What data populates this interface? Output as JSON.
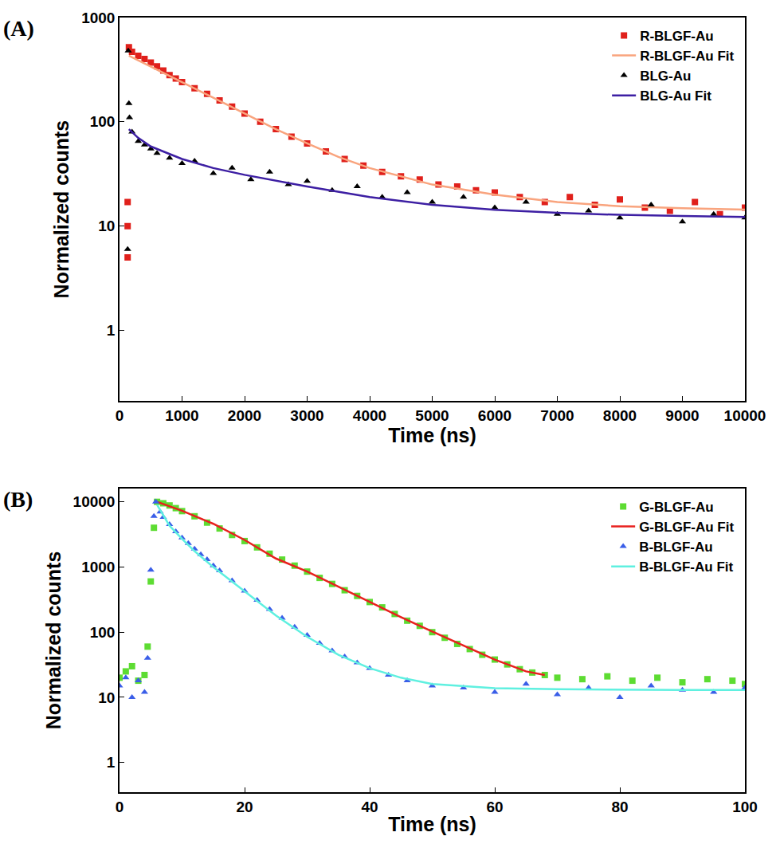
{
  "chart_data": [
    {
      "type": "scatter",
      "title": "(A)",
      "x_label": "Time (ns)",
      "y_label": "Normalized counts",
      "log": "y",
      "grid": false,
      "legend": "upper right",
      "xlim": [
        0,
        10000
      ],
      "xticks": [
        0,
        1000,
        2000,
        3000,
        4000,
        5000,
        6000,
        7000,
        8000,
        9000,
        10000
      ],
      "ylim": [
        0.21,
        1000
      ],
      "yticks": [
        1,
        10,
        100,
        1000
      ],
      "series": [
        {
          "name": "R-BLGF-Au",
          "type": "scatter",
          "marker": "square",
          "color": "#e0201b",
          "x": [
            130,
            130,
            130,
            150,
            200,
            300,
            400,
            500,
            600,
            700,
            800,
            900,
            1000,
            1200,
            1400,
            1600,
            1800,
            2000,
            2250,
            2500,
            2750,
            3000,
            3300,
            3600,
            3900,
            4200,
            4500,
            4800,
            5100,
            5400,
            5700,
            6000,
            6400,
            6800,
            7200,
            7600,
            8000,
            8400,
            8800,
            9200,
            9600,
            10000
          ],
          "values": [
            5,
            10,
            17,
            520,
            470,
            430,
            400,
            370,
            340,
            310,
            280,
            260,
            240,
            210,
            185,
            160,
            140,
            120,
            100,
            85,
            72,
            62,
            52,
            44,
            38,
            33,
            30,
            28,
            25,
            24,
            22,
            21,
            19,
            17,
            19,
            16,
            18,
            15,
            14,
            17,
            13,
            15
          ]
        },
        {
          "name": "R-BLGF-Au Fit",
          "type": "line",
          "line_style": "solid",
          "color": "#f9a47e",
          "x": [
            150,
            500,
            1000,
            1500,
            2000,
            2500,
            3000,
            3500,
            4000,
            5000,
            6000,
            7000,
            8000,
            9000,
            10000
          ],
          "values": [
            430,
            340,
            240,
            170,
            120,
            85,
            62,
            46,
            36,
            25,
            20,
            17,
            15.5,
            14.8,
            14.4
          ]
        },
        {
          "name": "BLG-Au",
          "type": "scatter",
          "marker": "triangle-up",
          "color": "#000000",
          "x": [
            130,
            140,
            150,
            160,
            200,
            300,
            400,
            500,
            600,
            800,
            1000,
            1200,
            1500,
            1800,
            2100,
            2400,
            2700,
            3000,
            3400,
            3800,
            4200,
            4600,
            5000,
            5500,
            6000,
            6500,
            7000,
            7500,
            8000,
            8500,
            9000,
            9500,
            10000
          ],
          "values": [
            6,
            480,
            150,
            110,
            80,
            65,
            60,
            55,
            50,
            45,
            40,
            42,
            32,
            36,
            28,
            33,
            25,
            27,
            22,
            24,
            19,
            21,
            17,
            19,
            15,
            17,
            13,
            14,
            12,
            16,
            11,
            13,
            12
          ]
        },
        {
          "name": "BLG-Au Fit",
          "type": "line",
          "line_style": "solid",
          "color": "#3d1fa3",
          "x": [
            150,
            300,
            500,
            1000,
            1500,
            2000,
            3000,
            4000,
            5000,
            6000,
            7000,
            8000,
            9000,
            10000
          ],
          "values": [
            85,
            70,
            58,
            44,
            36,
            31,
            24,
            19,
            16,
            14.3,
            13.4,
            12.8,
            12.5,
            12.2
          ]
        }
      ]
    },
    {
      "type": "scatter",
      "title": "(B)",
      "x_label": "Time (ns)",
      "y_label": "Normalized counts",
      "log": "y",
      "grid": false,
      "legend": "upper right",
      "xlim": [
        0,
        100
      ],
      "xticks": [
        0,
        20,
        40,
        60,
        80,
        100
      ],
      "ylim": [
        0.35,
        16000
      ],
      "yticks": [
        1,
        10,
        100,
        1000,
        10000
      ],
      "series": [
        {
          "name": "G-BLGF-Au",
          "type": "scatter",
          "marker": "square",
          "color": "#5ddc32",
          "x": [
            0,
            1,
            2,
            3,
            4,
            4.5,
            5,
            5.5,
            6,
            7,
            8,
            9,
            10,
            12,
            14,
            16,
            18,
            20,
            22,
            24,
            26,
            28,
            30,
            32,
            34,
            36,
            38,
            40,
            42,
            44,
            46,
            48,
            50,
            52,
            54,
            56,
            58,
            60,
            62,
            64,
            66,
            68,
            70,
            74,
            78,
            82,
            86,
            90,
            94,
            98,
            100
          ],
          "values": [
            20,
            25,
            30,
            18,
            22,
            60,
            600,
            4000,
            10000,
            9500,
            8800,
            8000,
            7200,
            6000,
            4800,
            3900,
            3100,
            2500,
            2000,
            1600,
            1300,
            1050,
            850,
            680,
            550,
            440,
            360,
            290,
            240,
            190,
            150,
            125,
            100,
            82,
            66,
            55,
            45,
            38,
            32,
            27,
            24,
            22,
            20,
            19,
            21,
            18,
            20,
            17,
            19,
            18,
            16
          ]
        },
        {
          "name": "G-BLGF-Au Fit",
          "type": "line",
          "line_style": "solid",
          "color": "#e8201e",
          "x": [
            6,
            8,
            10,
            15,
            20,
            25,
            30,
            35,
            40,
            45,
            50,
            55,
            60,
            65,
            68
          ],
          "values": [
            10000,
            8600,
            7300,
            4600,
            2600,
            1350,
            850,
            500,
            290,
            170,
            102,
            62,
            38,
            25,
            22
          ]
        },
        {
          "name": "B-BLGF-Au",
          "type": "scatter",
          "marker": "triangle-up",
          "color": "#3a5ee8",
          "x": [
            0,
            1,
            2,
            3,
            4,
            4.5,
            5,
            5.5,
            5.8,
            6.5,
            7,
            8,
            9,
            10,
            11,
            12,
            13,
            14,
            15,
            16,
            18,
            20,
            22,
            24,
            26,
            28,
            30,
            32,
            34,
            36,
            38,
            40,
            43,
            46,
            50,
            55,
            60,
            65,
            70,
            75,
            80,
            85,
            90,
            95,
            100
          ],
          "values": [
            15,
            20,
            10,
            18,
            12,
            40,
            900,
            6000,
            10000,
            7000,
            5800,
            4500,
            3500,
            2800,
            2300,
            1900,
            1550,
            1300,
            1050,
            880,
            620,
            430,
            310,
            225,
            165,
            120,
            90,
            68,
            52,
            42,
            34,
            28,
            22,
            18,
            15,
            14,
            12,
            16,
            11,
            14,
            10,
            15,
            13,
            12,
            14
          ]
        },
        {
          "name": "B-BLGF-Au Fit",
          "type": "line",
          "line_style": "solid",
          "color": "#5ff0e0",
          "x": [
            6,
            8,
            10,
            12,
            15,
            20,
            25,
            30,
            35,
            40,
            45,
            50,
            60,
            70,
            80,
            90,
            100
          ],
          "values": [
            9000,
            4300,
            2700,
            1750,
            1000,
            420,
            180,
            85,
            45,
            28,
            20,
            16,
            13.8,
            13.3,
            13.1,
            13,
            13
          ]
        }
      ]
    }
  ]
}
